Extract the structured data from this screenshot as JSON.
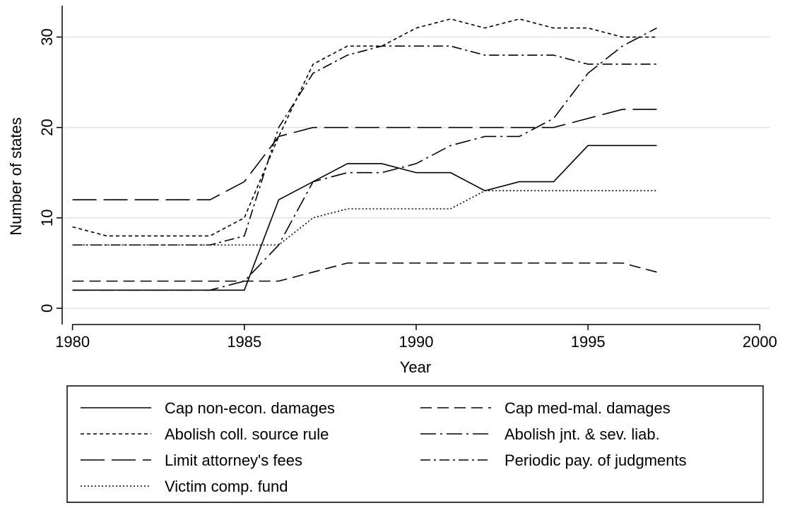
{
  "chart_data": {
    "type": "line",
    "x_label": "Year",
    "y_label": "Number of states",
    "x": [
      1980,
      1981,
      1982,
      1983,
      1984,
      1985,
      1986,
      1987,
      1988,
      1989,
      1990,
      1991,
      1992,
      1993,
      1994,
      1995,
      1996,
      1997
    ],
    "xlim": [
      1979.7,
      2000.3
    ],
    "xticks": [
      1980,
      1985,
      1990,
      1995,
      2000
    ],
    "ylim": [
      -1.8,
      34.1
    ],
    "yticks": [
      0,
      10,
      20,
      30
    ],
    "grid": true,
    "series": [
      {
        "name": "Cap non-econ. damages",
        "color": "#000000",
        "dash": "none",
        "values": [
          2,
          2,
          2,
          2,
          2,
          2,
          12,
          14,
          16,
          16,
          15,
          15,
          13,
          14,
          14,
          18,
          18,
          18
        ]
      },
      {
        "name": "Cap med-mal. damages",
        "color": "#000000",
        "dash": "16,8",
        "values": [
          3,
          3,
          3,
          3,
          3,
          3,
          3,
          4,
          5,
          5,
          5,
          5,
          5,
          5,
          5,
          5,
          5,
          4
        ]
      },
      {
        "name": "Abolish coll. source rule",
        "color": "#000000",
        "dash": "5,4",
        "values": [
          9,
          8,
          8,
          8,
          8,
          10,
          19,
          27,
          29,
          29,
          31,
          32,
          31,
          32,
          31,
          31,
          30,
          30
        ]
      },
      {
        "name": "Abolish jnt. & sev. liab.",
        "color": "#000000",
        "dash": "22,6,3,6",
        "values": [
          2,
          2,
          2,
          2,
          2,
          3,
          7,
          14,
          15,
          15,
          16,
          18,
          19,
          19,
          21,
          26,
          29,
          31
        ]
      },
      {
        "name": "Limit attorney's fees",
        "color": "#000000",
        "dash": "34,10",
        "values": [
          12,
          12,
          12,
          12,
          12,
          14,
          19,
          20,
          20,
          20,
          20,
          20,
          20,
          20,
          20,
          21,
          22,
          22
        ]
      },
      {
        "name": "Periodic pay. of judgments",
        "color": "#000000",
        "dash": "14,5,3,5",
        "values": [
          7,
          7,
          7,
          7,
          7,
          8,
          20,
          26,
          28,
          29,
          29,
          29,
          28,
          28,
          28,
          27,
          27,
          27
        ]
      },
      {
        "name": "Victim comp. fund",
        "color": "#000000",
        "dash": "2,3",
        "values": [
          7,
          7,
          7,
          7,
          7,
          7,
          7,
          10,
          11,
          11,
          11,
          11,
          13,
          13,
          13,
          13,
          13,
          13
        ]
      }
    ]
  }
}
